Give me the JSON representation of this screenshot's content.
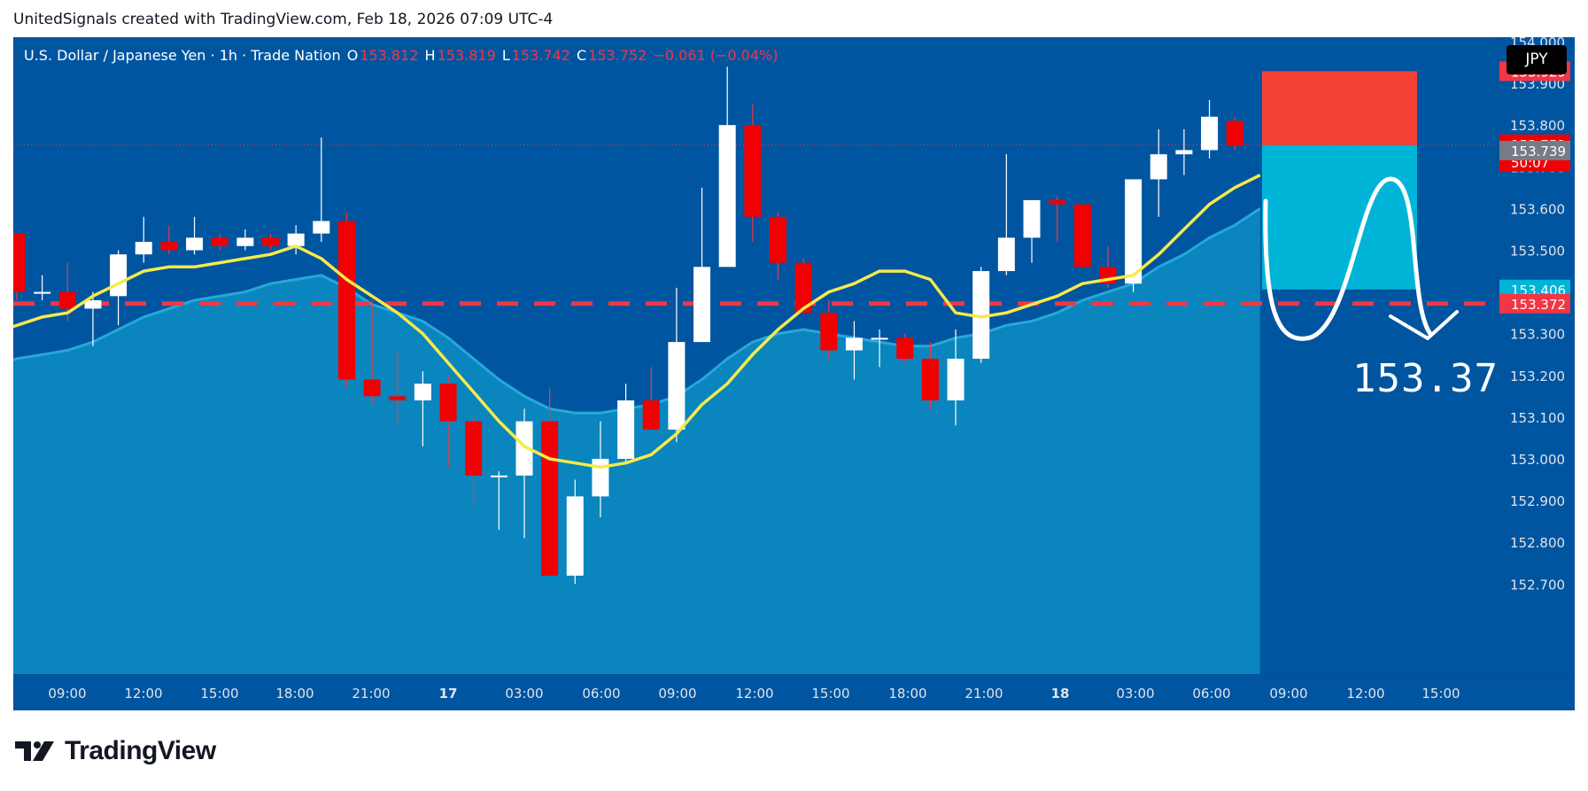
{
  "header": {
    "text": "UnitedSignals created with TradingView.com, Feb 18, 2026 07:09 UTC-4"
  },
  "legend": {
    "symbol": "U.S. Dollar / Japanese Yen · 1h · Trade Nation",
    "o_label": "O",
    "o": "153.812",
    "h_label": "H",
    "h": "153.819",
    "l_label": "L",
    "l": "153.742",
    "c_label": "C",
    "c": "153.752",
    "change": "−0.061 (−0.04%)"
  },
  "currency_badge": "JPY",
  "footer": {
    "brand": "TradingView"
  },
  "colors": {
    "background": "#0055a0",
    "up_candle": "#ffffff",
    "down_candle": "#f00000",
    "ma_fast": "#f6ea4a",
    "ma_area_line": "#27a8d8",
    "area_fill": "#0a85bd",
    "stop_zone": "#f44336",
    "target_zone": "#00b4d8",
    "level_line": "#f23645"
  },
  "chart_data": {
    "type": "candlestick",
    "ylim": [
      152.61,
      154.11
    ],
    "y_ticks": [
      "154.000",
      "153.900",
      "153.800",
      "153.700",
      "153.600",
      "153.500",
      "153.400",
      "153.300",
      "153.200",
      "153.100",
      "153.000",
      "152.900",
      "152.800",
      "152.700"
    ],
    "x_ticks": [
      "09:00",
      "12:00",
      "15:00",
      "18:00",
      "21:00",
      "17",
      "03:00",
      "06:00",
      "09:00",
      "12:00",
      "15:00",
      "18:00",
      "21:00",
      "18",
      "03:00",
      "06:00",
      "09:00",
      "12:00",
      "15:00"
    ],
    "bold_x_ticks": [
      "17",
      "18"
    ],
    "candles": [
      {
        "o": 153.54,
        "h": 153.54,
        "l": 153.38,
        "c": 153.4
      },
      {
        "o": 153.4,
        "h": 153.44,
        "l": 153.38,
        "c": 153.4
      },
      {
        "o": 153.4,
        "h": 153.47,
        "l": 153.33,
        "c": 153.36
      },
      {
        "o": 153.36,
        "h": 153.4,
        "l": 153.27,
        "c": 153.38
      },
      {
        "o": 153.39,
        "h": 153.5,
        "l": 153.32,
        "c": 153.49
      },
      {
        "o": 153.49,
        "h": 153.58,
        "l": 153.47,
        "c": 153.52
      },
      {
        "o": 153.52,
        "h": 153.56,
        "l": 153.49,
        "c": 153.5
      },
      {
        "o": 153.5,
        "h": 153.58,
        "l": 153.49,
        "c": 153.53
      },
      {
        "o": 153.53,
        "h": 153.54,
        "l": 153.5,
        "c": 153.51
      },
      {
        "o": 153.51,
        "h": 153.55,
        "l": 153.5,
        "c": 153.53
      },
      {
        "o": 153.53,
        "h": 153.54,
        "l": 153.5,
        "c": 153.51
      },
      {
        "o": 153.51,
        "h": 153.56,
        "l": 153.49,
        "c": 153.54
      },
      {
        "o": 153.54,
        "h": 153.77,
        "l": 153.52,
        "c": 153.57
      },
      {
        "o": 153.57,
        "h": 153.59,
        "l": 153.17,
        "c": 153.19
      },
      {
        "o": 153.19,
        "h": 153.38,
        "l": 153.13,
        "c": 153.15
      },
      {
        "o": 153.15,
        "h": 153.26,
        "l": 153.08,
        "c": 153.14
      },
      {
        "o": 153.14,
        "h": 153.21,
        "l": 153.03,
        "c": 153.18
      },
      {
        "o": 153.18,
        "h": 153.2,
        "l": 152.98,
        "c": 153.09
      },
      {
        "o": 153.09,
        "h": 153.11,
        "l": 152.89,
        "c": 152.96
      },
      {
        "o": 152.96,
        "h": 152.97,
        "l": 152.83,
        "c": 152.96
      },
      {
        "o": 152.96,
        "h": 153.12,
        "l": 152.81,
        "c": 153.09
      },
      {
        "o": 153.09,
        "h": 153.17,
        "l": 152.72,
        "c": 152.72
      },
      {
        "o": 152.72,
        "h": 152.95,
        "l": 152.7,
        "c": 152.91
      },
      {
        "o": 152.91,
        "h": 153.09,
        "l": 152.86,
        "c": 153.0
      },
      {
        "o": 153.0,
        "h": 153.18,
        "l": 152.99,
        "c": 153.14
      },
      {
        "o": 153.14,
        "h": 153.22,
        "l": 153.07,
        "c": 153.07
      },
      {
        "o": 153.07,
        "h": 153.41,
        "l": 153.04,
        "c": 153.28
      },
      {
        "o": 153.28,
        "h": 153.65,
        "l": 153.28,
        "c": 153.46
      },
      {
        "o": 153.46,
        "h": 153.94,
        "l": 153.46,
        "c": 153.8
      },
      {
        "o": 153.8,
        "h": 153.85,
        "l": 153.52,
        "c": 153.58
      },
      {
        "o": 153.58,
        "h": 153.59,
        "l": 153.43,
        "c": 153.47
      },
      {
        "o": 153.47,
        "h": 153.48,
        "l": 153.36,
        "c": 153.35
      },
      {
        "o": 153.35,
        "h": 153.38,
        "l": 153.24,
        "c": 153.26
      },
      {
        "o": 153.26,
        "h": 153.33,
        "l": 153.19,
        "c": 153.29
      },
      {
        "o": 153.29,
        "h": 153.31,
        "l": 153.22,
        "c": 153.29
      },
      {
        "o": 153.29,
        "h": 153.3,
        "l": 153.23,
        "c": 153.24
      },
      {
        "o": 153.24,
        "h": 153.28,
        "l": 153.12,
        "c": 153.14
      },
      {
        "o": 153.14,
        "h": 153.31,
        "l": 153.08,
        "c": 153.24
      },
      {
        "o": 153.24,
        "h": 153.46,
        "l": 153.23,
        "c": 153.45
      },
      {
        "o": 153.45,
        "h": 153.73,
        "l": 153.44,
        "c": 153.53
      },
      {
        "o": 153.53,
        "h": 153.62,
        "l": 153.47,
        "c": 153.62
      },
      {
        "o": 153.62,
        "h": 153.63,
        "l": 153.52,
        "c": 153.61
      },
      {
        "o": 153.61,
        "h": 153.61,
        "l": 153.46,
        "c": 153.46
      },
      {
        "o": 153.46,
        "h": 153.51,
        "l": 153.41,
        "c": 153.42
      },
      {
        "o": 153.42,
        "h": 153.67,
        "l": 153.4,
        "c": 153.67
      },
      {
        "o": 153.67,
        "h": 153.79,
        "l": 153.58,
        "c": 153.73
      },
      {
        "o": 153.73,
        "h": 153.79,
        "l": 153.68,
        "c": 153.74
      },
      {
        "o": 153.74,
        "h": 153.86,
        "l": 153.72,
        "c": 153.82
      },
      {
        "o": 153.81,
        "h": 153.82,
        "l": 153.74,
        "c": 153.75
      }
    ],
    "ma_fast": [
      153.3,
      153.32,
      153.34,
      153.35,
      153.39,
      153.42,
      153.45,
      153.46,
      153.46,
      153.47,
      153.48,
      153.49,
      153.51,
      153.48,
      153.43,
      153.39,
      153.35,
      153.3,
      153.23,
      153.16,
      153.09,
      153.03,
      153.0,
      152.99,
      152.98,
      152.99,
      153.01,
      153.06,
      153.13,
      153.18,
      153.25,
      153.31,
      153.36,
      153.4,
      153.42,
      153.45,
      153.45,
      153.43,
      153.35,
      153.34,
      153.35,
      153.37,
      153.39,
      153.42,
      153.43,
      153.44,
      153.49,
      153.55,
      153.61,
      153.65,
      153.68
    ],
    "ma_area": [
      153.22,
      153.24,
      153.25,
      153.26,
      153.28,
      153.31,
      153.34,
      153.36,
      153.38,
      153.39,
      153.4,
      153.42,
      153.43,
      153.44,
      153.41,
      153.37,
      153.35,
      153.33,
      153.29,
      153.24,
      153.19,
      153.15,
      153.12,
      153.11,
      153.11,
      153.12,
      153.13,
      153.15,
      153.19,
      153.24,
      153.28,
      153.3,
      153.31,
      153.3,
      153.29,
      153.28,
      153.27,
      153.27,
      153.29,
      153.3,
      153.32,
      153.33,
      153.35,
      153.38,
      153.4,
      153.42,
      153.46,
      153.49,
      153.53,
      153.56,
      153.6
    ],
    "stop_zone": {
      "top": 153.929,
      "bottom": 153.752
    },
    "target_zone": {
      "top": 153.752,
      "bottom": 153.406
    },
    "level_line": 153.372,
    "target_label": "153.37",
    "price_labels": [
      {
        "text": "153.929",
        "value": 153.929,
        "bg": "#f23645"
      },
      {
        "text": "153.752",
        "sub": "50:07",
        "value": 153.752,
        "bg": "#f00000"
      },
      {
        "text": "153.739",
        "value": 153.739,
        "bg": "#787b86"
      },
      {
        "text": "153.406",
        "value": 153.406,
        "bg": "#00b4d8"
      },
      {
        "text": "153.372",
        "value": 153.372,
        "bg": "#f23645"
      }
    ]
  }
}
